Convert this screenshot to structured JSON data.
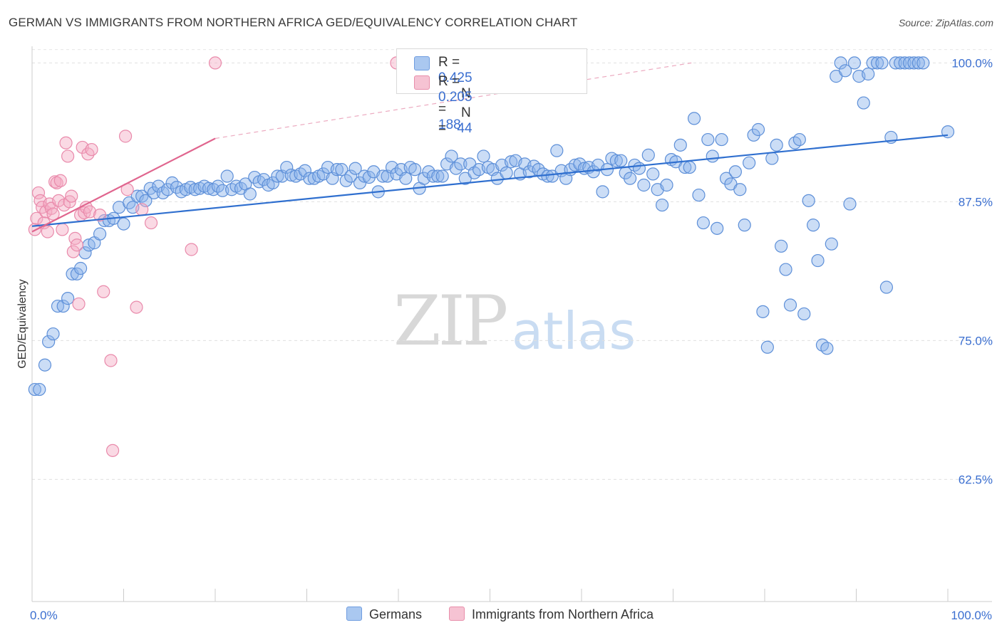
{
  "title": "GERMAN VS IMMIGRANTS FROM NORTHERN AFRICA GED/EQUIVALENCY CORRELATION CHART",
  "source": "Source: ZipAtlas.com",
  "watermark": {
    "zip": "ZIP",
    "atlas": "atlas"
  },
  "colors": {
    "blue": "#3b73d1",
    "blue_fill": "#aac8f0",
    "pink": "#e0658e",
    "pink_fill": "#f6b8cc"
  },
  "legend": {
    "rows": [
      {
        "r_label": "R = ",
        "r_value": "0.425",
        "n_label": "N = ",
        "n_value": "188"
      },
      {
        "r_label": "R = ",
        "r_value": "0.205",
        "n_label": "N = ",
        "n_value": "44"
      }
    ]
  },
  "chart_data": {
    "type": "scatter",
    "title": "GERMAN VS IMMIGRANTS FROM NORTHERN AFRICA GED/EQUIVALENCY CORRELATION CHART",
    "xlabel": "",
    "ylabel": "GED/Equivalency",
    "xlim": [
      0,
      100
    ],
    "ylim": [
      51.5,
      101.5
    ],
    "x_tick_labels": [
      "0.0%",
      "100.0%"
    ],
    "y_ticks": [
      62.5,
      75.0,
      87.5,
      100.0
    ],
    "y_tick_labels": [
      "62.5%",
      "75.0%",
      "87.5%",
      "100.0%"
    ],
    "grid": true,
    "legend_position": "bottom",
    "series": [
      {
        "name": "Germans",
        "color": "#3b73d1",
        "r": 0.425,
        "n": 188,
        "trend": {
          "x": [
            0,
            100
          ],
          "y": [
            85.3,
            93.5
          ]
        },
        "points": [
          [
            0.3,
            70.6
          ],
          [
            0.8,
            70.6
          ],
          [
            1.4,
            72.8
          ],
          [
            1.8,
            74.9
          ],
          [
            2.3,
            75.6
          ],
          [
            2.8,
            78.1
          ],
          [
            3.4,
            78.1
          ],
          [
            3.9,
            78.8
          ],
          [
            4.4,
            81.0
          ],
          [
            4.9,
            81.0
          ],
          [
            5.3,
            81.5
          ],
          [
            5.8,
            82.9
          ],
          [
            6.2,
            83.6
          ],
          [
            6.8,
            83.8
          ],
          [
            7.4,
            84.6
          ],
          [
            7.9,
            85.8
          ],
          [
            8.4,
            85.8
          ],
          [
            8.9,
            86.0
          ],
          [
            9.5,
            87.0
          ],
          [
            10.0,
            85.5
          ],
          [
            10.6,
            87.4
          ],
          [
            11.0,
            87.0
          ],
          [
            11.5,
            88.0
          ],
          [
            12.0,
            88.0
          ],
          [
            12.4,
            87.6
          ],
          [
            12.9,
            88.7
          ],
          [
            13.3,
            88.3
          ],
          [
            13.8,
            88.9
          ],
          [
            14.3,
            88.3
          ],
          [
            14.8,
            88.6
          ],
          [
            15.3,
            89.2
          ],
          [
            15.8,
            88.8
          ],
          [
            16.3,
            88.4
          ],
          [
            16.8,
            88.6
          ],
          [
            17.3,
            88.8
          ],
          [
            17.8,
            88.6
          ],
          [
            18.3,
            88.7
          ],
          [
            18.8,
            88.9
          ],
          [
            19.3,
            88.7
          ],
          [
            19.8,
            88.6
          ],
          [
            20.3,
            88.9
          ],
          [
            20.8,
            88.5
          ],
          [
            21.3,
            89.8
          ],
          [
            21.8,
            88.6
          ],
          [
            22.3,
            88.9
          ],
          [
            22.8,
            88.7
          ],
          [
            23.3,
            89.1
          ],
          [
            23.8,
            88.2
          ],
          [
            24.3,
            89.7
          ],
          [
            24.8,
            89.3
          ],
          [
            25.3,
            89.5
          ],
          [
            25.8,
            89.0
          ],
          [
            26.3,
            89.2
          ],
          [
            26.8,
            89.8
          ],
          [
            27.3,
            89.8
          ],
          [
            27.8,
            90.6
          ],
          [
            28.3,
            89.9
          ],
          [
            28.8,
            89.8
          ],
          [
            29.3,
            90.0
          ],
          [
            29.8,
            90.3
          ],
          [
            30.3,
            89.6
          ],
          [
            30.8,
            89.6
          ],
          [
            31.3,
            89.8
          ],
          [
            31.8,
            90.0
          ],
          [
            32.3,
            90.6
          ],
          [
            32.8,
            89.6
          ],
          [
            33.3,
            90.4
          ],
          [
            33.8,
            90.4
          ],
          [
            34.3,
            89.4
          ],
          [
            34.8,
            89.8
          ],
          [
            35.3,
            90.5
          ],
          [
            35.8,
            89.2
          ],
          [
            36.3,
            89.8
          ],
          [
            36.8,
            89.7
          ],
          [
            37.3,
            90.2
          ],
          [
            37.8,
            88.4
          ],
          [
            38.3,
            89.8
          ],
          [
            38.8,
            89.8
          ],
          [
            39.3,
            90.6
          ],
          [
            39.8,
            90.0
          ],
          [
            40.3,
            90.4
          ],
          [
            40.8,
            89.6
          ],
          [
            41.3,
            90.6
          ],
          [
            41.8,
            90.4
          ],
          [
            42.3,
            88.7
          ],
          [
            42.8,
            89.6
          ],
          [
            43.3,
            90.2
          ],
          [
            43.8,
            89.8
          ],
          [
            44.3,
            89.8
          ],
          [
            44.8,
            89.8
          ],
          [
            45.3,
            90.9
          ],
          [
            45.8,
            91.6
          ],
          [
            46.3,
            90.5
          ],
          [
            46.8,
            90.9
          ],
          [
            47.3,
            89.6
          ],
          [
            47.8,
            90.9
          ],
          [
            48.3,
            90.1
          ],
          [
            48.8,
            90.4
          ],
          [
            49.3,
            91.6
          ],
          [
            49.8,
            90.6
          ],
          [
            50.3,
            90.4
          ],
          [
            50.8,
            89.6
          ],
          [
            51.3,
            90.8
          ],
          [
            51.8,
            90.1
          ],
          [
            52.3,
            91.1
          ],
          [
            52.8,
            91.2
          ],
          [
            53.3,
            90.0
          ],
          [
            53.8,
            90.9
          ],
          [
            54.3,
            90.2
          ],
          [
            54.8,
            90.7
          ],
          [
            55.3,
            90.4
          ],
          [
            55.8,
            90.0
          ],
          [
            56.3,
            89.8
          ],
          [
            56.8,
            89.8
          ],
          [
            57.3,
            92.1
          ],
          [
            57.8,
            90.3
          ],
          [
            58.3,
            89.6
          ],
          [
            58.8,
            90.4
          ],
          [
            59.3,
            90.8
          ],
          [
            59.8,
            90.9
          ],
          [
            60.3,
            90.5
          ],
          [
            60.8,
            90.6
          ],
          [
            61.3,
            90.2
          ],
          [
            61.8,
            90.8
          ],
          [
            62.3,
            88.4
          ],
          [
            62.8,
            90.4
          ],
          [
            63.3,
            91.4
          ],
          [
            63.8,
            91.2
          ],
          [
            64.3,
            91.2
          ],
          [
            64.8,
            90.1
          ],
          [
            65.3,
            89.6
          ],
          [
            65.8,
            90.8
          ],
          [
            66.3,
            90.5
          ],
          [
            66.8,
            89.0
          ],
          [
            67.3,
            91.7
          ],
          [
            67.8,
            90.0
          ],
          [
            68.3,
            88.6
          ],
          [
            68.8,
            87.2
          ],
          [
            69.3,
            89.0
          ],
          [
            69.8,
            91.3
          ],
          [
            70.3,
            91.1
          ],
          [
            70.8,
            92.6
          ],
          [
            71.3,
            90.6
          ],
          [
            71.8,
            90.6
          ],
          [
            72.3,
            95.0
          ],
          [
            72.8,
            88.1
          ],
          [
            73.3,
            85.6
          ],
          [
            73.8,
            93.1
          ],
          [
            74.3,
            91.6
          ],
          [
            74.8,
            85.1
          ],
          [
            75.3,
            93.1
          ],
          [
            75.8,
            89.6
          ],
          [
            76.3,
            89.1
          ],
          [
            76.8,
            90.2
          ],
          [
            77.3,
            88.6
          ],
          [
            77.8,
            85.4
          ],
          [
            78.3,
            91.0
          ],
          [
            78.8,
            93.5
          ],
          [
            79.3,
            94.0
          ],
          [
            79.8,
            77.6
          ],
          [
            80.3,
            74.4
          ],
          [
            80.8,
            91.4
          ],
          [
            81.3,
            92.6
          ],
          [
            81.8,
            83.5
          ],
          [
            82.3,
            81.4
          ],
          [
            82.8,
            78.2
          ],
          [
            83.3,
            92.8
          ],
          [
            83.8,
            93.1
          ],
          [
            84.3,
            77.4
          ],
          [
            84.8,
            87.6
          ],
          [
            85.3,
            85.4
          ],
          [
            85.8,
            82.2
          ],
          [
            86.3,
            74.6
          ],
          [
            86.8,
            74.3
          ],
          [
            87.3,
            83.7
          ],
          [
            87.8,
            98.8
          ],
          [
            88.3,
            100.0
          ],
          [
            88.8,
            99.3
          ],
          [
            89.3,
            87.3
          ],
          [
            89.8,
            100.0
          ],
          [
            90.3,
            98.8
          ],
          [
            90.8,
            96.4
          ],
          [
            91.3,
            99.0
          ],
          [
            91.8,
            100.0
          ],
          [
            92.3,
            100.0
          ],
          [
            92.8,
            100.0
          ],
          [
            93.3,
            79.8
          ],
          [
            93.8,
            93.3
          ],
          [
            94.3,
            100.0
          ],
          [
            94.8,
            100.0
          ],
          [
            95.3,
            100.0
          ],
          [
            95.8,
            100.0
          ],
          [
            96.3,
            100.0
          ],
          [
            96.8,
            100.0
          ],
          [
            97.3,
            100.0
          ],
          [
            100.0,
            93.8
          ]
        ]
      },
      {
        "name": "Immigrants from Northern Africa",
        "color": "#e0658e",
        "r": 0.205,
        "n": 44,
        "trend": {
          "x": [
            0,
            20
          ],
          "y": [
            84.8,
            93.2
          ]
        },
        "trend_dashed": {
          "x": [
            20,
            72
          ],
          "y": [
            93.2,
            100.0
          ]
        },
        "points": [
          [
            0.3,
            85.0
          ],
          [
            0.5,
            86.0
          ],
          [
            0.7,
            88.3
          ],
          [
            0.9,
            87.6
          ],
          [
            1.1,
            87.0
          ],
          [
            1.3,
            85.6
          ],
          [
            1.5,
            86.6
          ],
          [
            1.7,
            84.8
          ],
          [
            1.9,
            87.3
          ],
          [
            2.1,
            86.9
          ],
          [
            2.3,
            86.4
          ],
          [
            2.5,
            89.3
          ],
          [
            2.7,
            89.2
          ],
          [
            2.9,
            87.6
          ],
          [
            3.1,
            89.4
          ],
          [
            3.3,
            85.0
          ],
          [
            3.5,
            87.2
          ],
          [
            3.7,
            92.8
          ],
          [
            3.9,
            91.6
          ],
          [
            4.1,
            87.5
          ],
          [
            4.3,
            88.0
          ],
          [
            4.5,
            83.0
          ],
          [
            4.7,
            84.2
          ],
          [
            4.9,
            83.6
          ],
          [
            5.1,
            78.3
          ],
          [
            5.3,
            86.3
          ],
          [
            5.5,
            92.4
          ],
          [
            5.7,
            86.5
          ],
          [
            5.9,
            87.0
          ],
          [
            6.1,
            91.8
          ],
          [
            6.3,
            86.6
          ],
          [
            6.5,
            92.2
          ],
          [
            7.4,
            86.3
          ],
          [
            7.8,
            79.4
          ],
          [
            8.6,
            73.2
          ],
          [
            8.8,
            65.1
          ],
          [
            10.2,
            93.4
          ],
          [
            10.4,
            88.6
          ],
          [
            11.4,
            78.0
          ],
          [
            12.0,
            86.8
          ],
          [
            13.0,
            85.6
          ],
          [
            17.4,
            83.2
          ],
          [
            20.0,
            100.0
          ],
          [
            39.8,
            100.0
          ]
        ]
      }
    ]
  },
  "bottom_legend": {
    "series_1": "Germans",
    "series_2": "Immigrants from Northern Africa"
  }
}
